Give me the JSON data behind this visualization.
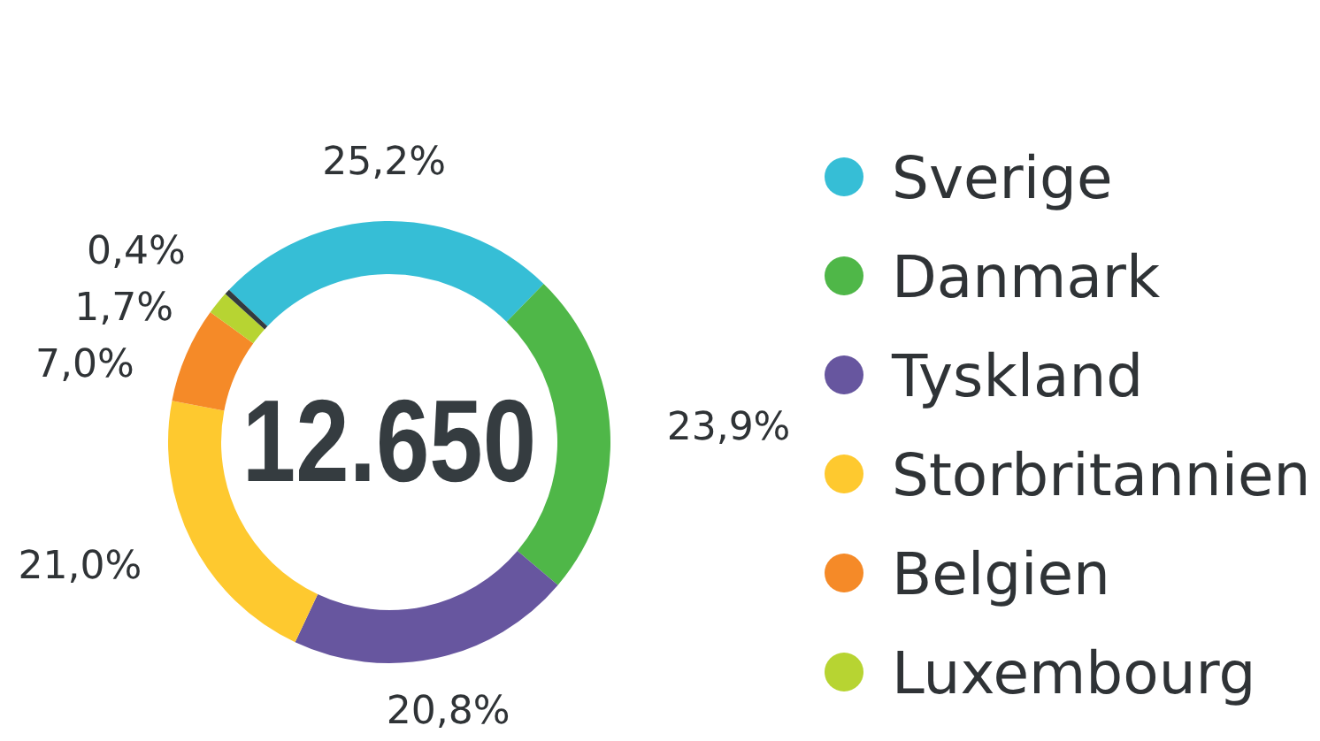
{
  "chart_data": {
    "type": "donut",
    "categories": [
      "Sverige",
      "Danmark",
      "Tyskland",
      "Storbritannien",
      "Belgien",
      "Luxembourg",
      null
    ],
    "values": [
      25.2,
      23.9,
      20.8,
      21.0,
      7.0,
      1.7,
      0.4
    ],
    "colors": [
      "#36bed6",
      "#4fb748",
      "#67569f",
      "#fec92f",
      "#f58a28",
      "#b7d432",
      "#333a3f"
    ],
    "value_labels": [
      "25,2%",
      "23,9%",
      "20,8%",
      "21,0%",
      "7,0%",
      "1,7%",
      "0,4%"
    ],
    "annotations": [
      "12.650"
    ],
    "legend": "right"
  }
}
